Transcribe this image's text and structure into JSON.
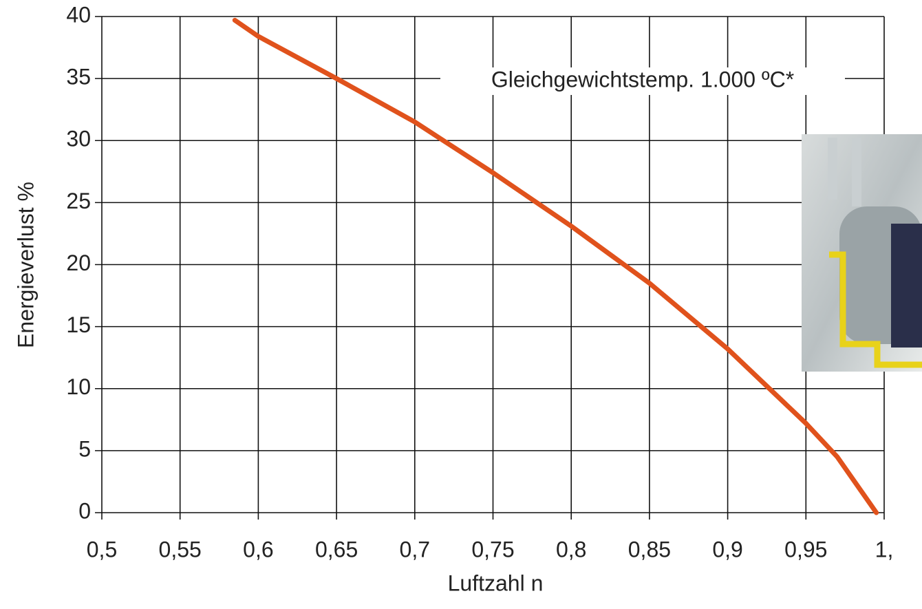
{
  "chart_data": {
    "type": "line",
    "x_label": "Luftzahl n",
    "y_label": "Energieverlust %",
    "annotation": "Gleichgewichtstemp. 1.000 ºC*",
    "xlim": [
      0.5,
      1.0
    ],
    "ylim": [
      0,
      40
    ],
    "xticks": [
      {
        "value": 0.5,
        "label": "0,5"
      },
      {
        "value": 0.55,
        "label": "0,55"
      },
      {
        "value": 0.6,
        "label": "0,6"
      },
      {
        "value": 0.65,
        "label": "0,65"
      },
      {
        "value": 0.7,
        "label": "0,7"
      },
      {
        "value": 0.75,
        "label": "0,75"
      },
      {
        "value": 0.8,
        "label": "0,8"
      },
      {
        "value": 0.85,
        "label": "0,85"
      },
      {
        "value": 0.9,
        "label": "0,9"
      },
      {
        "value": 0.95,
        "label": "0,95"
      },
      {
        "value": 1.0,
        "label": "1,"
      }
    ],
    "yticks": [
      0,
      5,
      10,
      15,
      20,
      25,
      30,
      35,
      40
    ],
    "grid": true,
    "series": [
      {
        "color": "#e0521c",
        "x": [
          0.585,
          0.6,
          0.65,
          0.7,
          0.75,
          0.8,
          0.85,
          0.9,
          0.95,
          0.97,
          0.995
        ],
        "values": [
          39.7,
          38.4,
          35.0,
          31.5,
          27.4,
          23.1,
          18.5,
          13.2,
          7.2,
          4.5,
          0
        ]
      }
    ]
  }
}
